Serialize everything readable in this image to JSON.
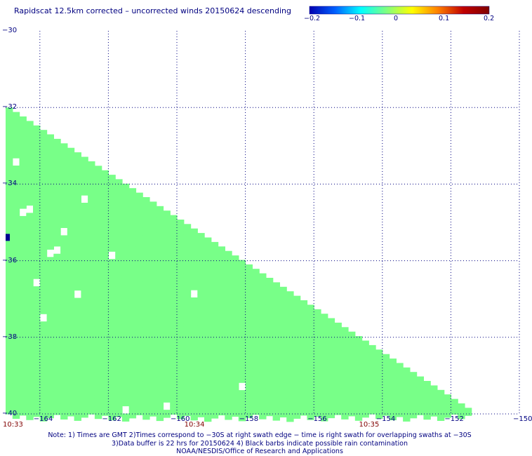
{
  "title": "Rapidscat 12.5km corrected – uncorrected winds 20150624 descending",
  "colorbar": {
    "ticks": [
      "−0.2",
      "−0.1",
      "0",
      "0.1",
      "0.2"
    ],
    "range": [
      -0.2,
      0.2
    ],
    "colors": [
      "#0000b0",
      "#0060ff",
      "#00ffff",
      "#80ff80",
      "#ffff00",
      "#ff8000",
      "#c00000",
      "#800000"
    ]
  },
  "chart_data": {
    "type": "heatmap",
    "x_ticks": [
      "−164",
      "−162",
      "−160",
      "−158",
      "−156",
      "−154",
      "−152",
      "−150"
    ],
    "y_ticks": [
      "−30",
      "−32",
      "−34",
      "−36",
      "−38",
      "−40"
    ],
    "xlim": [
      -165,
      -150
    ],
    "ylim": [
      -40,
      -30
    ],
    "grid": true,
    "swath_color": "#78ff88",
    "outlier_color": "#000090",
    "swath_boundary": [
      [
        -165,
        -32
      ],
      [
        -151.5,
        -39.9
      ]
    ],
    "times": [
      {
        "label": "10:33",
        "lon": -165
      },
      {
        "label": "10:34",
        "lon": -159.7
      },
      {
        "label": "10:35",
        "lon": -154.6
      }
    ]
  },
  "notes": [
    "Note: 1) Times are GMT 2)Times correspond to −30S at right swath edge − time is right swath for overlapping swaths at −30S",
    "3)Data buffer is 22 hrs for 20150624 4) Black barbs indicate possible rain contamination",
    "NOAA/NESDIS/Office of Research and Applications"
  ]
}
